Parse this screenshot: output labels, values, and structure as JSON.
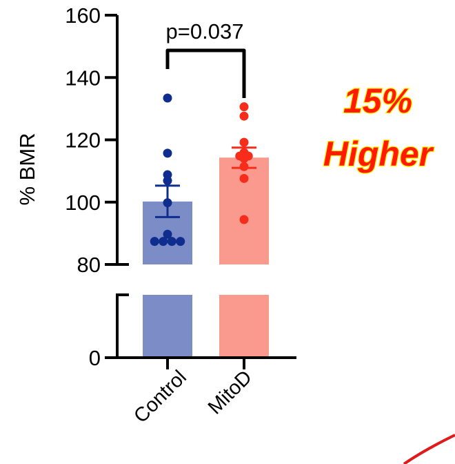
{
  "chart_data": {
    "type": "bar",
    "categories": [
      "Control",
      "MitoD"
    ],
    "ylabel": "% BMR",
    "yticks": [
      0,
      80,
      100,
      120,
      140,
      160
    ],
    "ylim_lower_segment": [
      0,
      1
    ],
    "ylim_upper_segment": [
      80,
      160
    ],
    "axis_break": true,
    "series": [
      {
        "values": [
          100.2,
          114.3
        ],
        "sem_low": [
          95.2,
          111.0
        ],
        "sem_high": [
          105.3,
          117.5
        ],
        "points": [
          [
            133.4,
            115.7,
            108.8,
            106.9,
            99.8,
            89.7,
            87.4,
            87.4,
            87.4,
            87.4
          ],
          [
            130.6,
            127.6,
            119.2,
            115.9,
            114.8,
            114.8,
            114.0,
            111.4,
            107.6,
            94.4
          ]
        ]
      }
    ],
    "colors": {
      "bars": [
        "#7b8cc6",
        "#fa9a8f"
      ],
      "points": [
        "#0e2d8f",
        "#f52d1a"
      ],
      "callout_fill": "#ff1a00",
      "callout_outline": "#fff200",
      "annotation_curve": "#e01a1a"
    },
    "annotation": {
      "text": "p=0.037"
    },
    "callout": {
      "line1": "15%",
      "line2": "Higher"
    }
  }
}
